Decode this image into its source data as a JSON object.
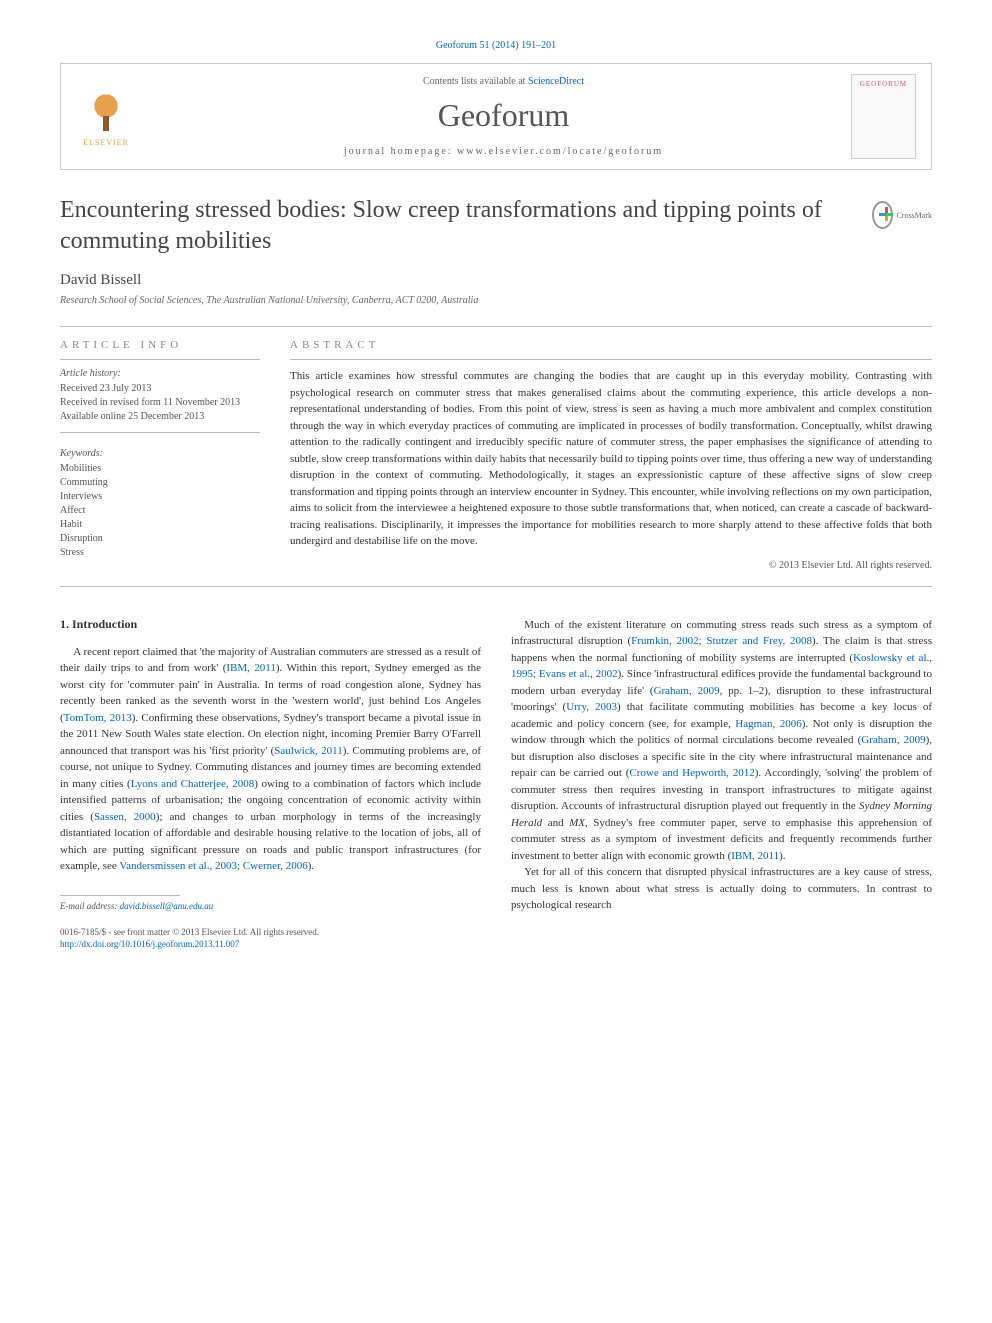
{
  "citation": "Geoforum 51 (2014) 191–201",
  "header": {
    "contents_prefix": "Contents lists available at ",
    "contents_link": "ScienceDirect",
    "journal": "Geoforum",
    "homepage_prefix": "journal homepage: ",
    "homepage_url": "www.elsevier.com/locate/geoforum",
    "elsevier": "ELSEVIER",
    "cover_title": "GEOFORUM"
  },
  "crossmark": "CrossMark",
  "title": "Encountering stressed bodies: Slow creep transformations and tipping points of commuting mobilities",
  "author": "David Bissell",
  "affiliation": "Research School of Social Sciences, The Australian National University, Canberra, ACT 0200, Australia",
  "info": {
    "header": "ARTICLE INFO",
    "history_label": "Article history:",
    "received": "Received 23 July 2013",
    "revised": "Received in revised form 11 November 2013",
    "online": "Available online 25 December 2013",
    "keywords_label": "Keywords:",
    "keywords": [
      "Mobilities",
      "Commuting",
      "Interviews",
      "Affect",
      "Habit",
      "Disruption",
      "Stress"
    ]
  },
  "abstract": {
    "header": "ABSTRACT",
    "text": "This article examines how stressful commutes are changing the bodies that are caught up in this everyday mobility. Contrasting with psychological research on commuter stress that makes generalised claims about the commuting experience, this article develops a non-representational understanding of bodies. From this point of view, stress is seen as having a much more ambivalent and complex constitution through the way in which everyday practices of commuting are implicated in processes of bodily transformation. Conceptually, whilst drawing attention to the radically contingent and irreducibly specific nature of commuter stress, the paper emphasises the significance of attending to subtle, slow creep transformations within daily habits that necessarily build to tipping points over time, thus offering a new way of understanding disruption in the context of commuting. Methodologically, it stages an expressionistic capture of these affective signs of slow creep transformation and tipping points through an interview encounter in Sydney. This encounter, while involving reflections on my own participation, aims to solicit from the interviewee a heightened exposure to those subtle transformations that, when noticed, can create a cascade of backward-tracing realisations. Disciplinarily, it impresses the importance for mobilities research to more sharply attend to these affective folds that both undergird and destabilise life on the move.",
    "copyright": "© 2013 Elsevier Ltd. All rights reserved."
  },
  "body": {
    "section_title": "1. Introduction",
    "col1_p1_a": "A recent report claimed that 'the majority of Australian commuters are stressed as a result of their daily trips to and from work' (",
    "col1_p1_cite1": "IBM, 2011",
    "col1_p1_b": "). Within this report, Sydney emerged as the worst city for 'commuter pain' in Australia. In terms of road congestion alone, Sydney has recently been ranked as the seventh worst in the 'western world', just behind Los Angeles (",
    "col1_p1_cite2": "TomTom, 2013",
    "col1_p1_c": "). Confirming these observations, Sydney's transport became a pivotal issue in the 2011 New South Wales state election. On election night, incoming Premier Barry O'Farrell announced that transport was his 'first priority' (",
    "col1_p1_cite3": "Saulwick, 2011",
    "col1_p1_d": "). Commuting problems are, of course, not unique to Sydney. Commuting distances and journey times are becoming extended in many cities (",
    "col1_p1_cite4": "Lyons and Chatterjee, 2008",
    "col1_p1_e": ") owing to a combination of factors which include intensified patterns of urbanisation; the ongoing concentration of economic activity within cities (",
    "col1_p1_cite5": "Sassen, 2000",
    "col1_p1_f": "); and changes to urban morphology in terms of the increasingly distantiated location of affordable and desirable housing relative to the location of jobs, all of which are putting significant pressure on roads and public transport infrastructures (for example, see ",
    "col1_p1_cite6": "Vandersmissen et al., 2003; Cwerner, 2006",
    "col1_p1_g": ").",
    "col2_p1_a": "Much of the existent literature on commuting stress reads such stress as a symptom of infrastructural disruption (",
    "col2_p1_cite1": "Frumkin, 2002; Stutzer and Frey, 2008",
    "col2_p1_b": "). The claim is that stress happens when the normal functioning of mobility systems are interrupted (",
    "col2_p1_cite2": "Koslowsky et al., 1995; Evans et al., 2002",
    "col2_p1_c": "). Since 'infrastructural edifices provide the fundamental background to modern urban everyday life' (",
    "col2_p1_cite3": "Graham, 2009",
    "col2_p1_d": ", pp. 1–2), disruption to these infrastructural 'moorings' (",
    "col2_p1_cite4": "Urry, 2003",
    "col2_p1_e": ") that facilitate commuting mobilities has become a key locus of academic and policy concern (see, for example, ",
    "col2_p1_cite5": "Hagman, 2006",
    "col2_p1_f": "). Not only is disruption the window through which the politics of normal circulations become revealed (",
    "col2_p1_cite6": "Graham, 2009",
    "col2_p1_g": "), but disruption also discloses a specific site in the city where infrastructural maintenance and repair can be carried out (",
    "col2_p1_cite7": "Crowe and Hepworth, 2012",
    "col2_p1_h": "). Accordingly, 'solving' the problem of commuter stress then requires investing in transport infrastructures to mitigate against disruption. Accounts of infrastructural disruption played out frequently in the ",
    "col2_p1_i1": "Sydney Morning Herald",
    "col2_p1_i": " and ",
    "col2_p1_i2": "MX",
    "col2_p1_j": ", Sydney's free commuter paper, serve to emphasise this apprehension of commuter stress as a symptom of investment deficits and frequently recommends further investment to better align with economic growth (",
    "col2_p1_cite8": "IBM, 2011",
    "col2_p1_k": ").",
    "col2_p2": "Yet for all of this concern that disrupted physical infrastructures are a key cause of stress, much less is known about what stress is actually doing to commuters. In contrast to psychological research"
  },
  "footer": {
    "email_label": "E-mail address: ",
    "email": "david.bissell@anu.edu.au",
    "issn": "0016-7185/$ - see front matter © 2013 Elsevier Ltd. All rights reserved.",
    "doi_url": "http://dx.doi.org/10.1016/j.geoforum.2013.11.007"
  }
}
